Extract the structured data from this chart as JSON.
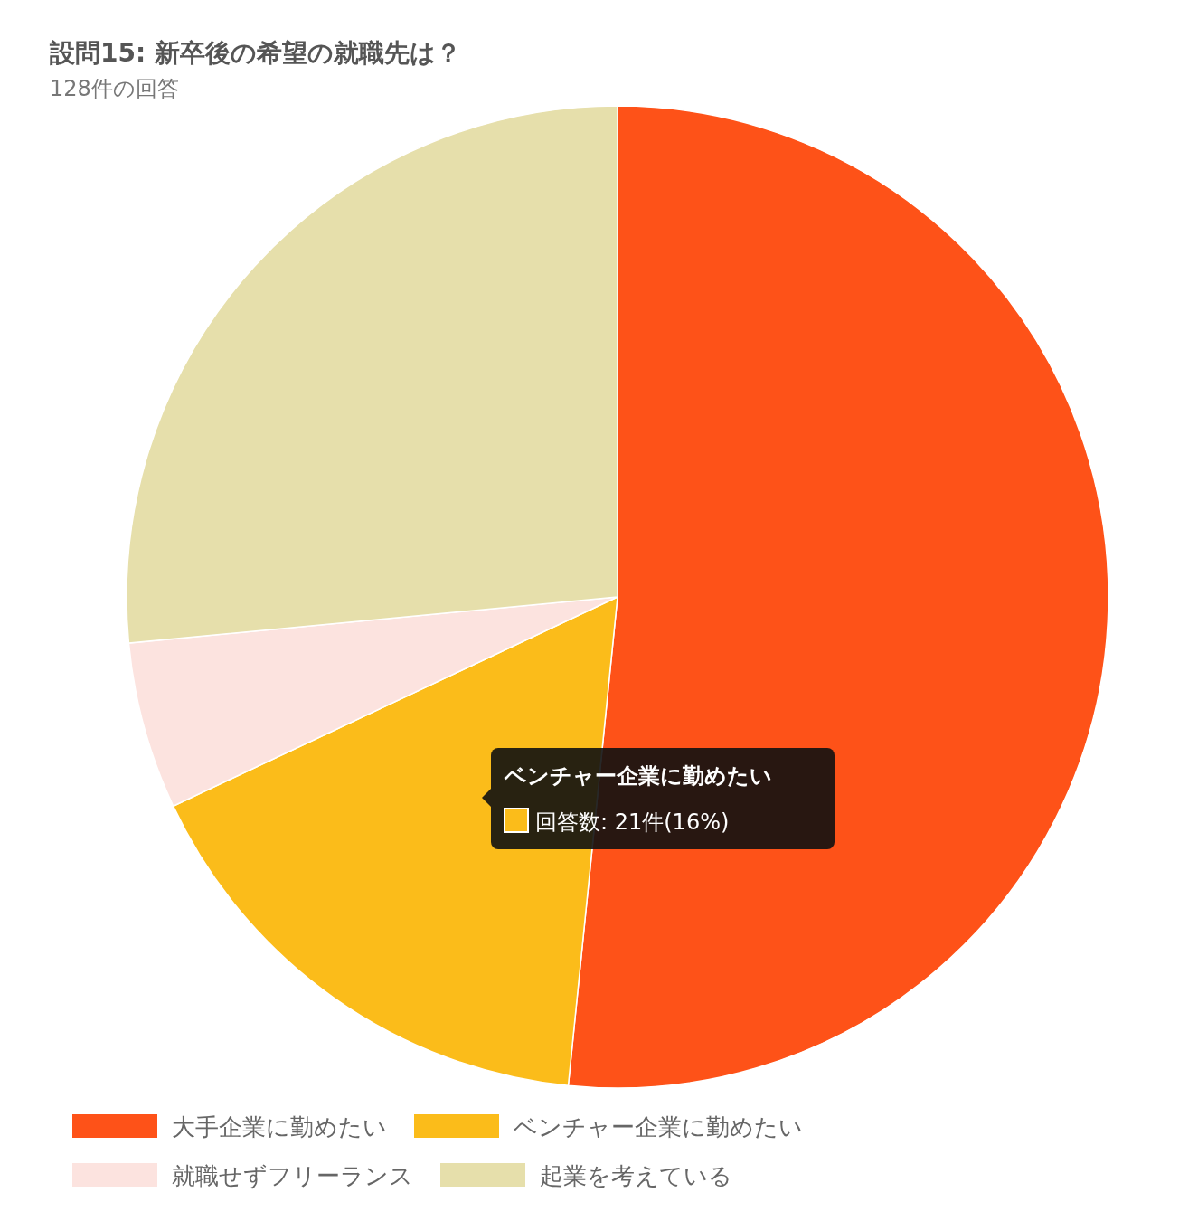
{
  "chart_data": {
    "type": "pie",
    "title": "設問15: 新卒後の希望の就職先は？",
    "subtitle": "128件の回答",
    "categories": [
      "大手企業に勤めたい",
      "ベンチャー企業に勤めたい",
      "就職せずフリーランス",
      "起業を考えている"
    ],
    "values": [
      51.6,
      16.4,
      5.5,
      26.5
    ],
    "colors": [
      "#fe5218",
      "#fbbc1a",
      "#fce3df",
      "#e6dfab"
    ],
    "legend": "bottom",
    "annotations": [
      "ベンチャー企業に勤めたい",
      "回答数: 21件(16%)"
    ]
  }
}
